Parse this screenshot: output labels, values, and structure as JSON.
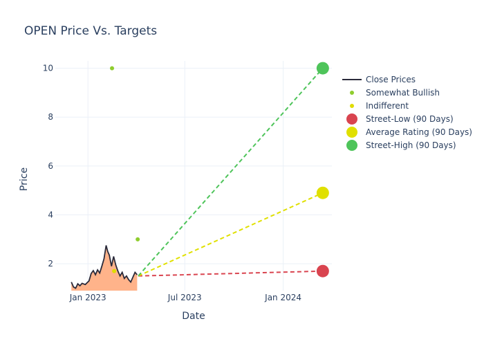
{
  "chart_data": {
    "type": "line",
    "title": "OPEN Price Vs. Targets",
    "xlabel": "Date",
    "ylabel": "Price",
    "xlim": [
      "2022-11-01",
      "2024-04-01"
    ],
    "ylim": [
      0.9,
      10.3
    ],
    "x_ticks": [
      {
        "date": "2023-01-01",
        "label": "Jan 2023"
      },
      {
        "date": "2023-07-01",
        "label": "Jul 2023"
      },
      {
        "date": "2024-01-01",
        "label": "Jan 2024"
      }
    ],
    "y_ticks": [
      2,
      4,
      6,
      8,
      10
    ],
    "grid": true,
    "legend_position": "right",
    "series": [
      {
        "name": "Close Prices",
        "kind": "line-area",
        "color": "#2a2a3a",
        "fill_color": "#ffb38a",
        "points": [
          [
            "2022-12-01",
            1.25
          ],
          [
            "2022-12-05",
            1.05
          ],
          [
            "2022-12-09",
            1.0
          ],
          [
            "2022-12-13",
            1.18
          ],
          [
            "2022-12-17",
            1.1
          ],
          [
            "2022-12-21",
            1.2
          ],
          [
            "2022-12-27",
            1.15
          ],
          [
            "2023-01-03",
            1.3
          ],
          [
            "2023-01-07",
            1.6
          ],
          [
            "2023-01-11",
            1.72
          ],
          [
            "2023-01-15",
            1.55
          ],
          [
            "2023-01-19",
            1.75
          ],
          [
            "2023-01-23",
            1.62
          ],
          [
            "2023-01-27",
            1.9
          ],
          [
            "2023-01-31",
            2.2
          ],
          [
            "2023-02-04",
            2.75
          ],
          [
            "2023-02-07",
            2.5
          ],
          [
            "2023-02-10",
            2.35
          ],
          [
            "2023-02-14",
            1.9
          ],
          [
            "2023-02-18",
            2.3
          ],
          [
            "2023-02-22",
            1.95
          ],
          [
            "2023-02-26",
            1.7
          ],
          [
            "2023-03-02",
            1.5
          ],
          [
            "2023-03-06",
            1.65
          ],
          [
            "2023-03-10",
            1.4
          ],
          [
            "2023-03-14",
            1.5
          ],
          [
            "2023-03-18",
            1.35
          ],
          [
            "2023-03-22",
            1.25
          ],
          [
            "2023-03-26",
            1.45
          ],
          [
            "2023-03-30",
            1.65
          ],
          [
            "2023-04-03",
            1.55
          ]
        ]
      },
      {
        "name": "Somewhat Bullish",
        "kind": "markers",
        "color": "#8fcd2e",
        "points": [
          [
            "2023-02-15",
            10.0
          ],
          [
            "2023-04-04",
            3.0
          ]
        ]
      },
      {
        "name": "Indifferent",
        "kind": "markers",
        "color": "#e0dc00",
        "points": [
          [
            "2023-02-19",
            1.7
          ]
        ]
      },
      {
        "name": "Street-Low (90 Days)",
        "kind": "target",
        "color": "#d9444f",
        "points": [
          [
            "2023-04-05",
            1.5
          ],
          [
            "2024-03-15",
            1.7
          ]
        ]
      },
      {
        "name": "Average Rating (90 Days)",
        "kind": "target",
        "color": "#e0e000",
        "points": [
          [
            "2023-04-05",
            1.5
          ],
          [
            "2024-03-15",
            4.9
          ]
        ]
      },
      {
        "name": "Street-High (90 Days)",
        "kind": "target",
        "color": "#4ec45a",
        "points": [
          [
            "2023-04-05",
            1.5
          ],
          [
            "2024-03-15",
            10.0
          ]
        ]
      }
    ]
  }
}
